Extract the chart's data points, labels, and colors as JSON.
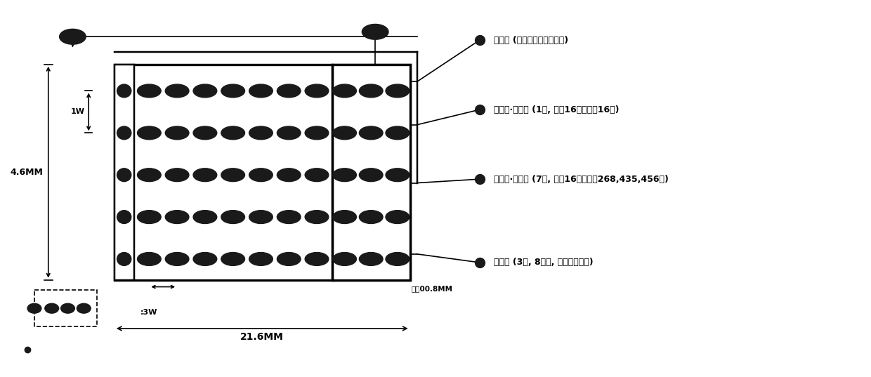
{
  "bg_color": "#ffffff",
  "line_color": "#000000",
  "hole_color": "#1a1a1a",
  "fig_width": 12.4,
  "fig_height": 5.37,
  "dpi": 100,
  "labels": [
    "标志区 (行列定位及方向定位)",
    "数据区·厂别码 (1位, 纵向16进制支持16个)",
    "数据区·流水码 (7位, 纵向16进制支持268,435,456个)",
    "校验区 (3位, 8进制, 横向孔数校验)"
  ],
  "label_46": "4.6MM",
  "label_1w": "1W",
  "label_3w": ":3W",
  "label_216": "21.6MM",
  "label_hole_size": "孔冉00.8MM",
  "lw": 1.2
}
